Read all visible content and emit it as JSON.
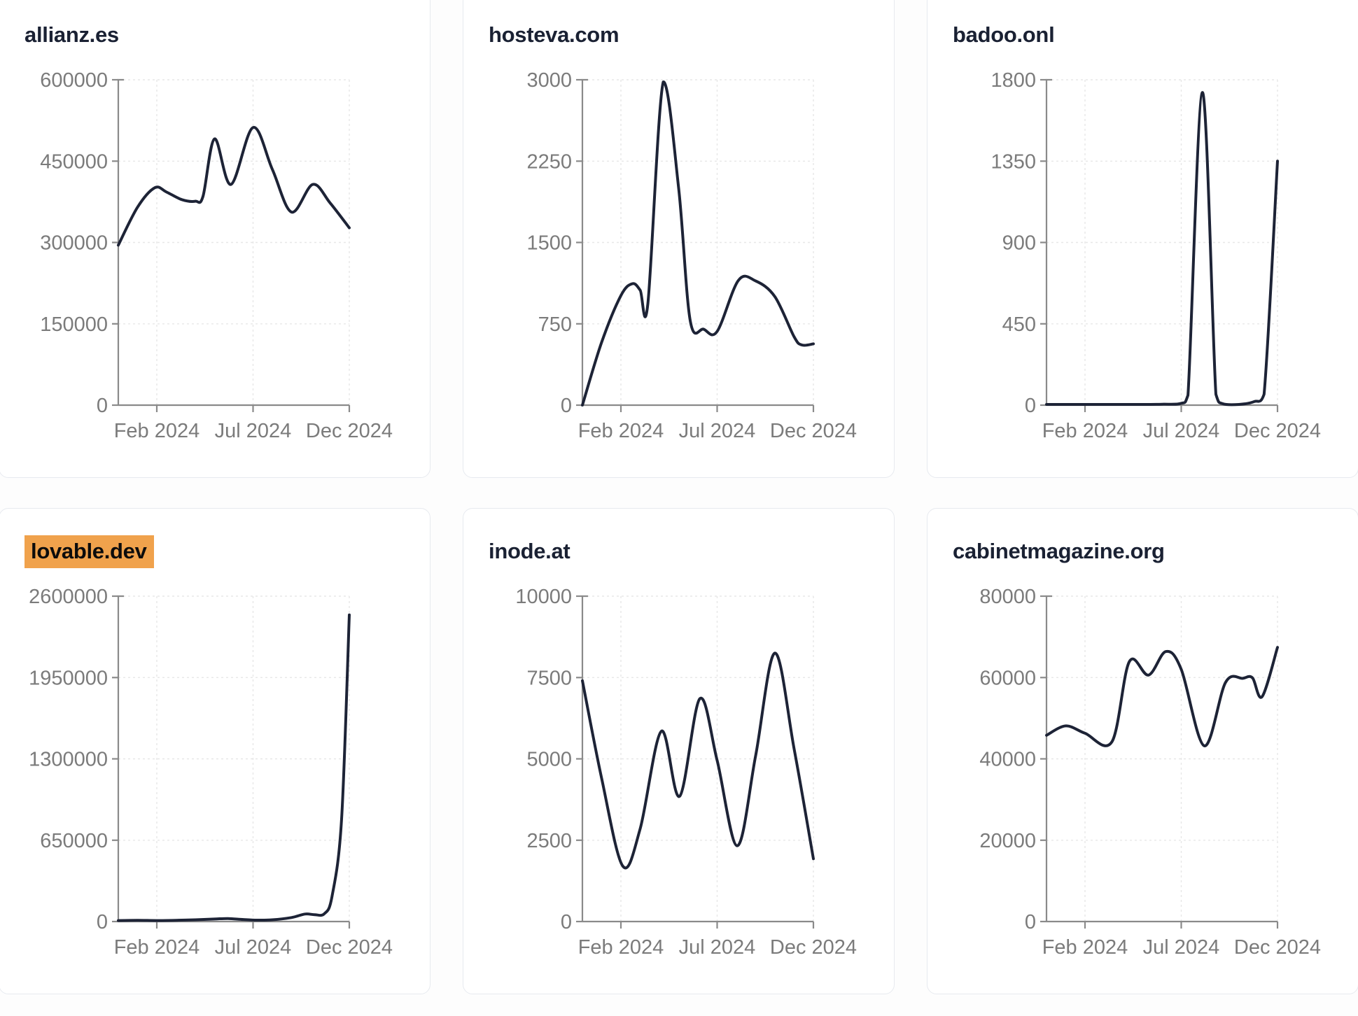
{
  "colors": {
    "page_bg": "#fdfdfd",
    "card_bg": "#ffffff",
    "card_border": "#e7eaef",
    "title_text": "#1a2133",
    "line": "#1d2336",
    "axis": "#8a8a8a",
    "tick_label": "#7b7b7b",
    "grid": "#e7e7e7",
    "highlight_bg": "#f0a24c",
    "highlight_text": "#0c0c0c"
  },
  "x_axis": {
    "tick_labels": [
      "Feb 2024",
      "Jul 2024",
      "Dec 2024"
    ],
    "tick_months": [
      2,
      7,
      12
    ],
    "domain_note": "months since Dec 2023 (0) to Dec 2024 (12)"
  },
  "chart_data": [
    {
      "type": "line",
      "title": "allianz.es",
      "title_highlight": false,
      "ylim": [
        0,
        600000
      ],
      "y_ticks": [
        0,
        150000,
        300000,
        450000,
        600000
      ],
      "x_tick_labels": [
        "Feb 2024",
        "Jul 2024",
        "Dec 2024"
      ],
      "x_tick_months": [
        2,
        7,
        12
      ],
      "points": [
        [
          0,
          295000
        ],
        [
          1,
          365000
        ],
        [
          1.9,
          401000
        ],
        [
          2.5,
          393000
        ],
        [
          3.3,
          379000
        ],
        [
          4,
          376000
        ],
        [
          4.4,
          385000
        ],
        [
          5,
          491000
        ],
        [
          5.85,
          407000
        ],
        [
          7,
          512000
        ],
        [
          8,
          435000
        ],
        [
          9,
          356000
        ],
        [
          10.1,
          407000
        ],
        [
          11,
          373000
        ],
        [
          12,
          327000
        ]
      ]
    },
    {
      "type": "line",
      "title": "hosteva.com",
      "title_highlight": false,
      "ylim": [
        0,
        3000
      ],
      "y_ticks": [
        0,
        750,
        1500,
        2250,
        3000
      ],
      "x_tick_labels": [
        "Feb 2024",
        "Jul 2024",
        "Dec 2024"
      ],
      "x_tick_months": [
        2,
        7,
        12
      ],
      "points": [
        [
          0,
          0
        ],
        [
          1,
          580
        ],
        [
          2,
          1010
        ],
        [
          2.6,
          1120
        ],
        [
          3,
          1060
        ],
        [
          3.4,
          935
        ],
        [
          4.2,
          2980
        ],
        [
          5,
          2000
        ],
        [
          5.6,
          780
        ],
        [
          6.3,
          700
        ],
        [
          7,
          680
        ],
        [
          8.1,
          1150
        ],
        [
          9,
          1145
        ],
        [
          10,
          1000
        ],
        [
          11,
          630
        ],
        [
          11.4,
          555
        ],
        [
          12,
          565
        ]
      ]
    },
    {
      "type": "line",
      "title": "badoo.onl",
      "title_highlight": false,
      "ylim": [
        0,
        1800
      ],
      "y_ticks": [
        0,
        450,
        900,
        1350,
        1800
      ],
      "x_tick_labels": [
        "Feb 2024",
        "Jul 2024",
        "Dec 2024"
      ],
      "x_tick_months": [
        2,
        7,
        12
      ],
      "points": [
        [
          0,
          4
        ],
        [
          1.5,
          4
        ],
        [
          3,
          4
        ],
        [
          4.5,
          4
        ],
        [
          6,
          5
        ],
        [
          7,
          10
        ],
        [
          7.35,
          55
        ],
        [
          8.1,
          1730
        ],
        [
          8.8,
          60
        ],
        [
          9.15,
          8
        ],
        [
          10,
          4
        ],
        [
          10.8,
          20
        ],
        [
          11.3,
          60
        ],
        [
          12,
          1350
        ]
      ]
    },
    {
      "type": "line",
      "title": "lovable.dev",
      "title_highlight": true,
      "ylim": [
        0,
        2600000
      ],
      "y_ticks": [
        0,
        650000,
        1300000,
        1950000,
        2600000
      ],
      "x_tick_labels": [
        "Feb 2024",
        "Jul 2024",
        "Dec 2024"
      ],
      "x_tick_months": [
        2,
        7,
        12
      ],
      "points": [
        [
          0,
          8000
        ],
        [
          1,
          10000
        ],
        [
          2,
          8000
        ],
        [
          3,
          10000
        ],
        [
          4,
          14000
        ],
        [
          5,
          20000
        ],
        [
          5.7,
          24000
        ],
        [
          6.5,
          16000
        ],
        [
          7.2,
          11000
        ],
        [
          8,
          14000
        ],
        [
          9,
          32000
        ],
        [
          9.7,
          60000
        ],
        [
          10.2,
          55000
        ],
        [
          10.7,
          62000
        ],
        [
          11.1,
          200000
        ],
        [
          11.6,
          820000
        ],
        [
          12,
          2450000
        ]
      ]
    },
    {
      "type": "line",
      "title": "inode.at",
      "title_highlight": false,
      "ylim": [
        0,
        10000
      ],
      "y_ticks": [
        0,
        2500,
        5000,
        7500,
        10000
      ],
      "x_tick_labels": [
        "Feb 2024",
        "Jul 2024",
        "Dec 2024"
      ],
      "x_tick_months": [
        2,
        7,
        12
      ],
      "points": [
        [
          0,
          7400
        ],
        [
          1,
          4400
        ],
        [
          2.1,
          1700
        ],
        [
          3,
          2850
        ],
        [
          4.1,
          5850
        ],
        [
          5.05,
          3850
        ],
        [
          6.1,
          6850
        ],
        [
          7,
          4950
        ],
        [
          8.05,
          2330
        ],
        [
          9,
          5100
        ],
        [
          10,
          8250
        ],
        [
          11,
          5300
        ],
        [
          12,
          1930
        ]
      ]
    },
    {
      "type": "line",
      "title": "cabinetmagazine.org",
      "title_highlight": false,
      "ylim": [
        0,
        80000
      ],
      "y_ticks": [
        0,
        20000,
        40000,
        60000,
        80000
      ],
      "x_tick_labels": [
        "Feb 2024",
        "Jul 2024",
        "Dec 2024"
      ],
      "x_tick_months": [
        2,
        7,
        12
      ],
      "points": [
        [
          0,
          45800
        ],
        [
          1,
          48100
        ],
        [
          2,
          46300
        ],
        [
          3.4,
          44200
        ],
        [
          4.3,
          63900
        ],
        [
          5.3,
          60600
        ],
        [
          6.2,
          66400
        ],
        [
          7,
          62000
        ],
        [
          8.2,
          43200
        ],
        [
          9.3,
          58800
        ],
        [
          10.2,
          59800
        ],
        [
          10.7,
          59900
        ],
        [
          11.2,
          55300
        ],
        [
          12,
          67400
        ]
      ]
    }
  ]
}
